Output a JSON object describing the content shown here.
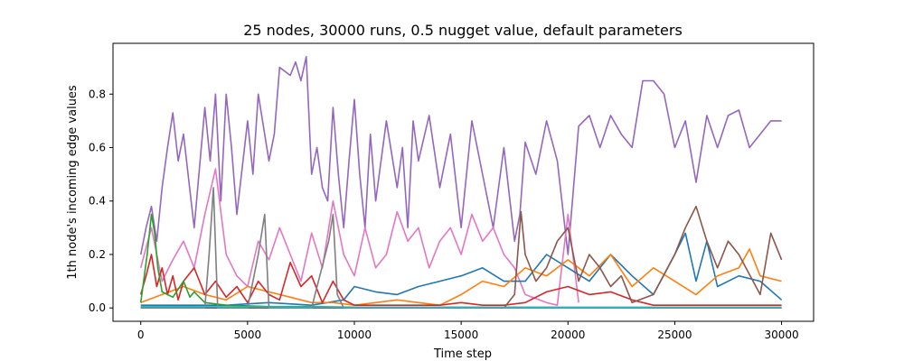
{
  "chart_data": {
    "type": "line",
    "title": "25 nodes, 30000 runs, 0.5 nugget value, default parameters",
    "xlabel": "Time step",
    "ylabel": "1th node's incoming edge values",
    "xlim": [
      -1300,
      31500
    ],
    "ylim": [
      -0.05,
      0.99
    ],
    "xticks": [
      0,
      5000,
      10000,
      15000,
      20000,
      25000,
      30000
    ],
    "xtick_labels": [
      "0",
      "5000",
      "10000",
      "15000",
      "20000",
      "25000",
      "30000"
    ],
    "yticks": [
      0.0,
      0.2,
      0.4,
      0.6,
      0.8
    ],
    "ytick_labels": [
      "0.0",
      "0.2",
      "0.4",
      "0.6",
      "0.8"
    ],
    "grid": false,
    "legend": "none",
    "series": [
      {
        "color": "#9467bd",
        "x": [
          0,
          250,
          500,
          750,
          1000,
          1250,
          1500,
          1750,
          2000,
          2500,
          3000,
          3250,
          3500,
          3750,
          4000,
          4250,
          4500,
          5000,
          5250,
          5500,
          6000,
          6250,
          6500,
          7000,
          7250,
          7500,
          7750,
          8000,
          8250,
          8500,
          8750,
          9000,
          9250,
          9500,
          9750,
          10000,
          10250,
          10500,
          10750,
          11000,
          11500,
          12000,
          12250,
          12500,
          12750,
          13000,
          13500,
          14000,
          14500,
          15000,
          15500,
          16000,
          16500,
          17000,
          17500,
          17750,
          18000,
          18500,
          19000,
          19500,
          20000,
          20500,
          21000,
          21500,
          22000,
          22500,
          23000,
          23500,
          24000,
          24500,
          25000,
          25500,
          26000,
          26500,
          27000,
          27500,
          28000,
          28500,
          29000,
          29500,
          30000
        ],
        "y": [
          0.2,
          0.3,
          0.38,
          0.25,
          0.45,
          0.6,
          0.73,
          0.55,
          0.65,
          0.3,
          0.75,
          0.55,
          0.8,
          0.4,
          0.8,
          0.6,
          0.35,
          0.7,
          0.5,
          0.8,
          0.55,
          0.65,
          0.9,
          0.87,
          0.92,
          0.85,
          0.94,
          0.5,
          0.6,
          0.45,
          0.4,
          0.75,
          0.5,
          0.3,
          0.55,
          0.78,
          0.5,
          0.3,
          0.65,
          0.4,
          0.7,
          0.45,
          0.6,
          0.3,
          0.7,
          0.55,
          0.72,
          0.45,
          0.65,
          0.3,
          0.7,
          0.5,
          0.3,
          0.6,
          0.25,
          0.35,
          0.62,
          0.5,
          0.7,
          0.55,
          0.2,
          0.68,
          0.72,
          0.6,
          0.72,
          0.65,
          0.6,
          0.85,
          0.85,
          0.8,
          0.6,
          0.7,
          0.47,
          0.72,
          0.6,
          0.72,
          0.74,
          0.6,
          0.65,
          0.7,
          0.7
        ]
      },
      {
        "color": "#e377c2",
        "x": [
          0,
          500,
          1000,
          1500,
          2000,
          2500,
          3000,
          3500,
          4000,
          4500,
          5000,
          5500,
          6000,
          6500,
          7000,
          7500,
          8000,
          8500,
          9000,
          9500,
          10000,
          10500,
          11000,
          11500,
          12000,
          12500,
          13000,
          13500,
          14000,
          14500,
          15000,
          15500,
          16000,
          16500,
          17000,
          17500,
          18000,
          19000,
          19500,
          20000,
          20500
        ],
        "y": [
          0.15,
          0.3,
          0.1,
          0.18,
          0.25,
          0.15,
          0.35,
          0.52,
          0.2,
          0.12,
          0.08,
          0.25,
          0.18,
          0.3,
          0.2,
          0.1,
          0.28,
          0.15,
          0.4,
          0.2,
          0.12,
          0.3,
          0.15,
          0.2,
          0.36,
          0.25,
          0.3,
          0.15,
          0.25,
          0.3,
          0.2,
          0.35,
          0.25,
          0.3,
          0.2,
          0.15,
          0.05,
          0.02,
          0.01,
          0.35,
          0.02
        ]
      },
      {
        "color": "#1f77b4",
        "x": [
          0,
          2000,
          4000,
          6000,
          8000,
          9500,
          10000,
          11000,
          12000,
          13000,
          14000,
          15000,
          16000,
          17000,
          18000,
          19000,
          20000,
          21000,
          22000,
          23000,
          24000,
          25000,
          25500,
          26000,
          26500,
          27000,
          28000,
          29000,
          30000
        ],
        "y": [
          0.01,
          0.01,
          0.01,
          0.02,
          0.01,
          0.03,
          0.08,
          0.06,
          0.05,
          0.08,
          0.1,
          0.12,
          0.15,
          0.1,
          0.1,
          0.2,
          0.15,
          0.1,
          0.2,
          0.12,
          0.05,
          0.2,
          0.28,
          0.1,
          0.25,
          0.08,
          0.12,
          0.1,
          0.03
        ]
      },
      {
        "color": "#ff7f0e",
        "x": [
          0,
          1000,
          2000,
          3000,
          4000,
          5000,
          6000,
          7000,
          8000,
          9000,
          10000,
          11000,
          12000,
          13000,
          14000,
          15000,
          16000,
          17000,
          18000,
          19000,
          20000,
          21000,
          22000,
          23000,
          24000,
          25000,
          26000,
          27000,
          28000,
          28500,
          29000,
          30000
        ],
        "y": [
          0.02,
          0.05,
          0.08,
          0.05,
          0.03,
          0.08,
          0.06,
          0.04,
          0.02,
          0.02,
          0.01,
          0.02,
          0.03,
          0.02,
          0.01,
          0.05,
          0.1,
          0.08,
          0.15,
          0.12,
          0.18,
          0.12,
          0.2,
          0.08,
          0.15,
          0.1,
          0.05,
          0.12,
          0.15,
          0.22,
          0.12,
          0.1
        ]
      },
      {
        "color": "#d62728",
        "x": [
          0,
          250,
          500,
          750,
          1000,
          1250,
          1500,
          1750,
          2000,
          2500,
          3000,
          3500,
          4000,
          4500,
          5000,
          5500,
          6000,
          6500,
          7000,
          7500,
          8000,
          8500,
          9000,
          9500,
          10000,
          11000,
          12000,
          13000,
          14000,
          15000,
          16000,
          17000,
          18000,
          19000,
          20000,
          21000,
          22000,
          23000,
          24000,
          25000,
          26000,
          27000,
          28000,
          29000,
          30000
        ],
        "y": [
          0.05,
          0.12,
          0.2,
          0.08,
          0.15,
          0.05,
          0.12,
          0.03,
          0.1,
          0.15,
          0.05,
          0.1,
          0.04,
          0.08,
          0.02,
          0.1,
          0.05,
          0.03,
          0.17,
          0.08,
          0.12,
          0.02,
          0.1,
          0.03,
          0.01,
          0.01,
          0.01,
          0.01,
          0.01,
          0.02,
          0.01,
          0.01,
          0.02,
          0.06,
          0.08,
          0.05,
          0.06,
          0.03,
          0.01,
          0.01,
          0.01,
          0.01,
          0.01,
          0.01,
          0.01
        ]
      },
      {
        "color": "#8c564b",
        "x": [
          0,
          17000,
          17500,
          17800,
          18000,
          18500,
          19000,
          19500,
          20000,
          20500,
          21000,
          21500,
          22000,
          22500,
          23000,
          24000,
          25000,
          25500,
          26000,
          26500,
          27000,
          27500,
          28000,
          29000,
          29500,
          30000
        ],
        "y": [
          0.0,
          0.0,
          0.05,
          0.36,
          0.2,
          0.1,
          0.15,
          0.25,
          0.3,
          0.1,
          0.2,
          0.15,
          0.08,
          0.12,
          0.02,
          0.05,
          0.2,
          0.3,
          0.38,
          0.25,
          0.15,
          0.25,
          0.2,
          0.05,
          0.28,
          0.18
        ]
      },
      {
        "color": "#2ca02c",
        "x": [
          0,
          300,
          500,
          650,
          800,
          1000,
          1500,
          2000,
          2300,
          2500,
          3000,
          4000,
          6000,
          8000,
          10000,
          15000,
          20000,
          25000,
          30000
        ],
        "y": [
          0.02,
          0.2,
          0.35,
          0.28,
          0.15,
          0.06,
          0.04,
          0.1,
          0.04,
          0.06,
          0.02,
          0.01,
          0.005,
          0.005,
          0.003,
          0.003,
          0.002,
          0.002,
          0.002
        ]
      },
      {
        "color": "#7f7f7f",
        "x": [
          0,
          2000,
          3000,
          3200,
          3400,
          3600,
          4000,
          5000,
          5500,
          5800,
          6000,
          6500,
          7000,
          8000,
          8800,
          9000,
          9200,
          9500,
          10000,
          15000,
          20000,
          25000,
          30000
        ],
        "y": [
          0.0,
          0.0,
          0.0,
          0.2,
          0.45,
          0.0,
          0.0,
          0.0,
          0.2,
          0.35,
          0.0,
          0.0,
          0.0,
          0.0,
          0.25,
          0.35,
          0.05,
          0.0,
          0.0,
          0.0,
          0.0,
          0.0,
          0.0
        ]
      },
      {
        "color": "#17becf",
        "x": [
          0,
          5000,
          10000,
          15000,
          20000,
          25000,
          30000
        ],
        "y": [
          0.005,
          0.004,
          0.003,
          0.003,
          0.002,
          0.002,
          0.002
        ]
      }
    ]
  }
}
